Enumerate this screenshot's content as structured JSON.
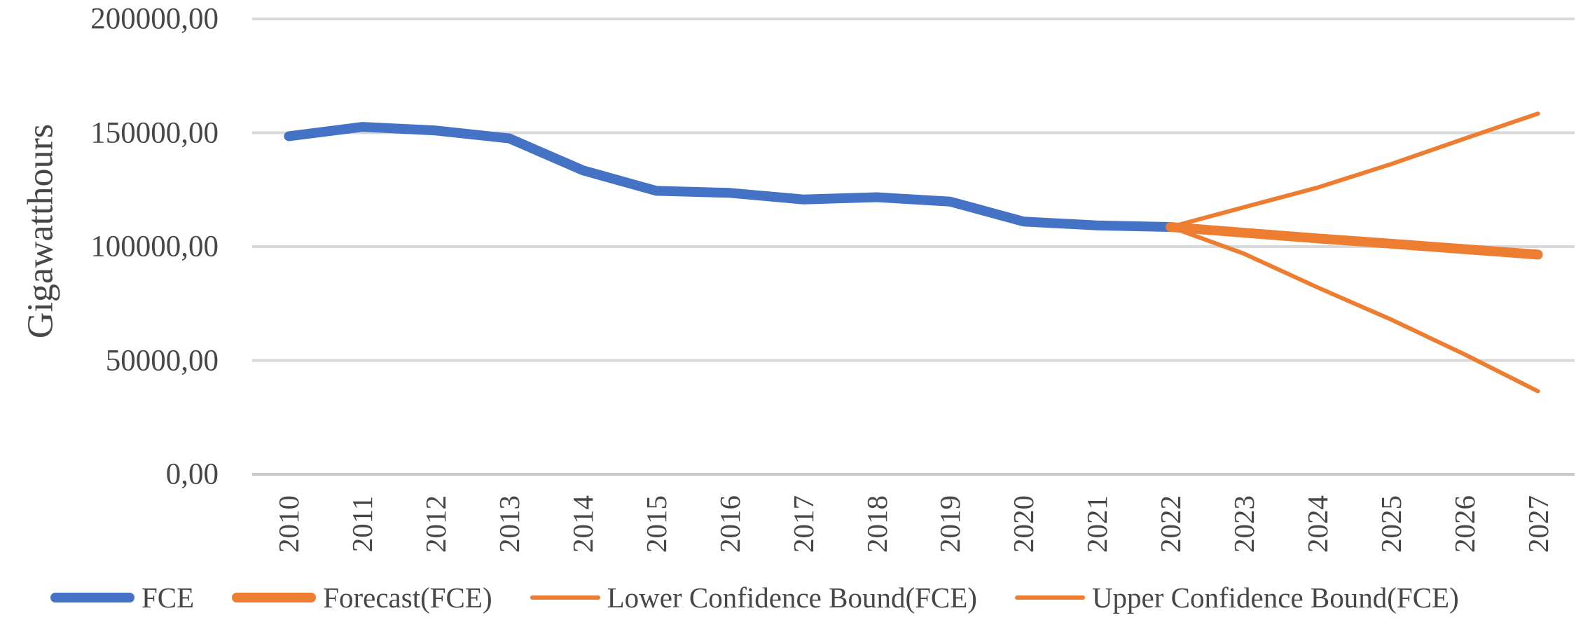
{
  "chart_data": {
    "type": "line",
    "title": "",
    "xlabel": "",
    "ylabel": "Gigawatthours",
    "ylim": [
      0,
      200000
    ],
    "grid": true,
    "legend_position": "bottom",
    "y_ticks": [
      {
        "value": 200000,
        "label": "200000,00"
      },
      {
        "value": 150000,
        "label": "150000,00"
      },
      {
        "value": 100000,
        "label": "100000,00"
      },
      {
        "value": 50000,
        "label": "50000,00"
      },
      {
        "value": 0,
        "label": "0,00"
      }
    ],
    "categories": [
      "2010",
      "2011",
      "2012",
      "2013",
      "2014",
      "2015",
      "2016",
      "2017",
      "2018",
      "2019",
      "2020",
      "2021",
      "2022",
      "2023",
      "2024",
      "2025",
      "2026",
      "2027"
    ],
    "series": [
      {
        "name": "FCE",
        "color": "#4472C4",
        "line_weight": "thick",
        "start_index": 0,
        "values": [
          148500,
          152600,
          151000,
          147500,
          133500,
          124500,
          123600,
          120700,
          121700,
          119800,
          111000,
          109300,
          108600
        ]
      },
      {
        "name": "Forecast(FCE)",
        "color": "#ED7D31",
        "line_weight": "thick",
        "start_index": 12,
        "values": [
          108600,
          106100,
          103600,
          101300,
          98900,
          96500
        ]
      },
      {
        "name": "Lower Confidence Bound(FCE)",
        "color": "#ED7D31",
        "line_weight": "thin",
        "start_index": 12,
        "values": [
          108600,
          96900,
          82100,
          68000,
          52700,
          36500
        ]
      },
      {
        "name": "Upper Confidence Bound(FCE)",
        "color": "#ED7D31",
        "line_weight": "thin",
        "start_index": 12,
        "values": [
          108600,
          117300,
          125900,
          136200,
          147400,
          158400
        ]
      }
    ],
    "legend": [
      {
        "label": "FCE",
        "swatch": "thick",
        "color": "#4472C4"
      },
      {
        "label": "Forecast(FCE)",
        "swatch": "thick",
        "color": "#ED7D31"
      },
      {
        "label": "Lower Confidence Bound(FCE)",
        "swatch": "thin",
        "color": "#ED7D31"
      },
      {
        "label": "Upper Confidence Bound(FCE)",
        "swatch": "thin",
        "color": "#ED7D31"
      }
    ],
    "colors": {
      "fce_blue": "#4472C4",
      "forecast_orange": "#ED7D31",
      "gridline": "#D9D9D9",
      "axis_line": "#C8C8C8",
      "text": "#474747"
    }
  }
}
